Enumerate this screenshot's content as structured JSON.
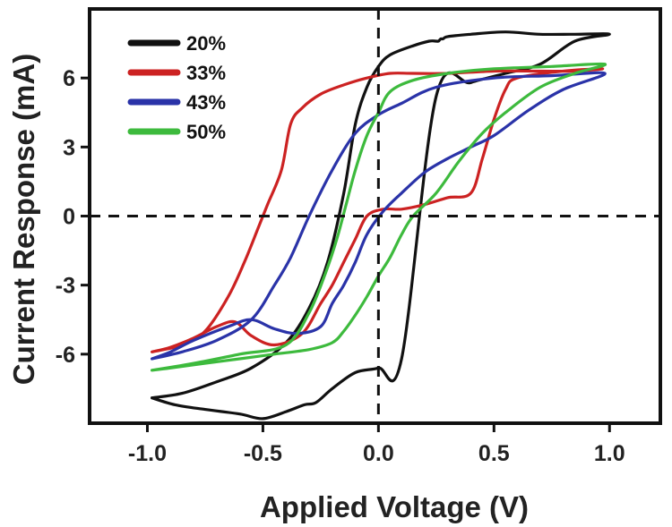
{
  "chart_data": {
    "type": "line",
    "xlabel": "Applied Voltage (V)",
    "ylabel": "Current Response (mA)",
    "xlim": [
      -1.25,
      1.22
    ],
    "ylim": [
      -9.0,
      9.0
    ],
    "x_ticks": [
      -1.0,
      -0.5,
      0.0,
      0.5,
      1.0
    ],
    "x_tick_labels": [
      "-1.0",
      "-0.5",
      "0.0",
      "0.5",
      "1.0"
    ],
    "y_ticks": [
      -6,
      -3,
      0,
      3,
      6
    ],
    "y_tick_labels": [
      "-6",
      "-3",
      "0",
      "3",
      "6"
    ],
    "reference_lines": [
      {
        "orientation": "vertical",
        "value": 0,
        "style": "dashed"
      },
      {
        "orientation": "horizontal",
        "value": 0,
        "style": "dashed"
      }
    ],
    "grid": false,
    "legend_position": "top-left",
    "series": [
      {
        "name": "20%",
        "color": "#111111",
        "x": [
          -0.98,
          -0.85,
          -0.7,
          -0.55,
          -0.4,
          -0.3,
          -0.22,
          -0.15,
          -0.1,
          -0.05,
          0.0,
          0.05,
          0.15,
          0.22,
          0.25,
          0.26,
          0.27,
          0.28,
          0.3,
          0.4,
          0.55,
          0.7,
          0.85,
          1.0,
          0.85,
          0.7,
          0.55,
          0.4,
          0.25,
          0.1,
          0.0,
          -0.1,
          -0.2,
          -0.27,
          -0.32,
          -0.4,
          -0.5,
          -0.6,
          -0.75,
          -0.88,
          -0.98
        ],
        "y": [
          -7.9,
          -7.7,
          -7.2,
          -6.6,
          -5.5,
          -4.0,
          -2.0,
          1.0,
          4.0,
          5.6,
          6.5,
          7.0,
          7.4,
          7.6,
          7.6,
          7.6,
          7.7,
          7.7,
          7.8,
          7.9,
          8.0,
          7.9,
          7.9,
          7.9,
          7.6,
          6.6,
          6.2,
          5.8,
          5.2,
          -6.2,
          -6.6,
          -6.8,
          -7.5,
          -8.1,
          -8.2,
          -8.5,
          -8.8,
          -8.6,
          -8.4,
          -8.2,
          -7.9
        ]
      },
      {
        "name": "33%",
        "color": "#cc2222",
        "x": [
          -0.98,
          -0.85,
          -0.75,
          -0.65,
          -0.58,
          -0.52,
          -0.48,
          -0.42,
          -0.38,
          -0.33,
          -0.25,
          -0.15,
          -0.05,
          0.05,
          0.15,
          0.3,
          0.5,
          0.7,
          0.85,
          0.97,
          0.8,
          0.6,
          0.55,
          0.5,
          0.45,
          0.4,
          0.3,
          0.2,
          0.1,
          0.02,
          -0.05,
          -0.1,
          -0.15,
          -0.2,
          -0.25,
          -0.33,
          -0.45,
          -0.55,
          -0.62,
          -0.7,
          -0.8,
          -0.9,
          -0.98
        ],
        "y": [
          -5.9,
          -5.6,
          -5.0,
          -3.5,
          -2.0,
          -0.5,
          0.5,
          2.0,
          4.0,
          4.7,
          5.3,
          5.7,
          6.0,
          6.2,
          6.2,
          6.2,
          6.3,
          6.3,
          6.3,
          6.4,
          6.3,
          6.0,
          5.5,
          4.2,
          2.5,
          1.0,
          0.8,
          0.5,
          0.3,
          0.3,
          0.0,
          -1.0,
          -2.0,
          -3.0,
          -3.8,
          -5.1,
          -5.6,
          -5.2,
          -4.6,
          -4.8,
          -5.3,
          -5.7,
          -5.9
        ]
      },
      {
        "name": "43%",
        "color": "#2a33a8",
        "x": [
          -0.98,
          -0.85,
          -0.7,
          -0.55,
          -0.45,
          -0.38,
          -0.3,
          -0.2,
          -0.1,
          0.0,
          0.1,
          0.25,
          0.5,
          0.75,
          0.98,
          0.8,
          0.65,
          0.5,
          0.4,
          0.3,
          0.2,
          0.1,
          0.02,
          -0.05,
          -0.1,
          -0.15,
          -0.2,
          -0.25,
          -0.35,
          -0.45,
          -0.55,
          -0.65,
          -0.8,
          -0.9,
          -0.98
        ],
        "y": [
          -6.2,
          -5.9,
          -5.4,
          -4.5,
          -3.0,
          -1.8,
          0.0,
          2.0,
          3.6,
          4.4,
          4.9,
          5.6,
          6.0,
          6.1,
          6.2,
          5.5,
          4.6,
          3.5,
          3.0,
          2.5,
          1.9,
          1.0,
          0.2,
          -0.8,
          -2.0,
          -3.0,
          -3.8,
          -4.8,
          -5.1,
          -4.9,
          -4.5,
          -4.8,
          -5.4,
          -5.9,
          -6.2
        ]
      },
      {
        "name": "50%",
        "color": "#3dba3d",
        "x": [
          -0.98,
          -0.8,
          -0.6,
          -0.4,
          -0.3,
          -0.23,
          -0.18,
          -0.14,
          -0.1,
          -0.05,
          0.0,
          0.05,
          0.15,
          0.3,
          0.5,
          0.75,
          0.98,
          0.85,
          0.7,
          0.55,
          0.45,
          0.35,
          0.25,
          0.15,
          0.1,
          0.05,
          0.0,
          -0.05,
          -0.1,
          -0.15,
          -0.2,
          -0.3,
          -0.45,
          -0.6,
          -0.75,
          -0.9,
          -0.98
        ],
        "y": [
          -6.7,
          -6.4,
          -6.0,
          -5.6,
          -4.2,
          -2.5,
          -1.0,
          0.5,
          2.0,
          3.5,
          4.5,
          5.4,
          5.9,
          6.2,
          6.4,
          6.5,
          6.6,
          6.2,
          5.6,
          4.5,
          3.6,
          2.4,
          1.0,
          0.0,
          -0.8,
          -1.8,
          -2.6,
          -3.5,
          -4.3,
          -5.0,
          -5.5,
          -5.8,
          -6.0,
          -6.2,
          -6.4,
          -6.6,
          -6.7
        ]
      }
    ]
  }
}
